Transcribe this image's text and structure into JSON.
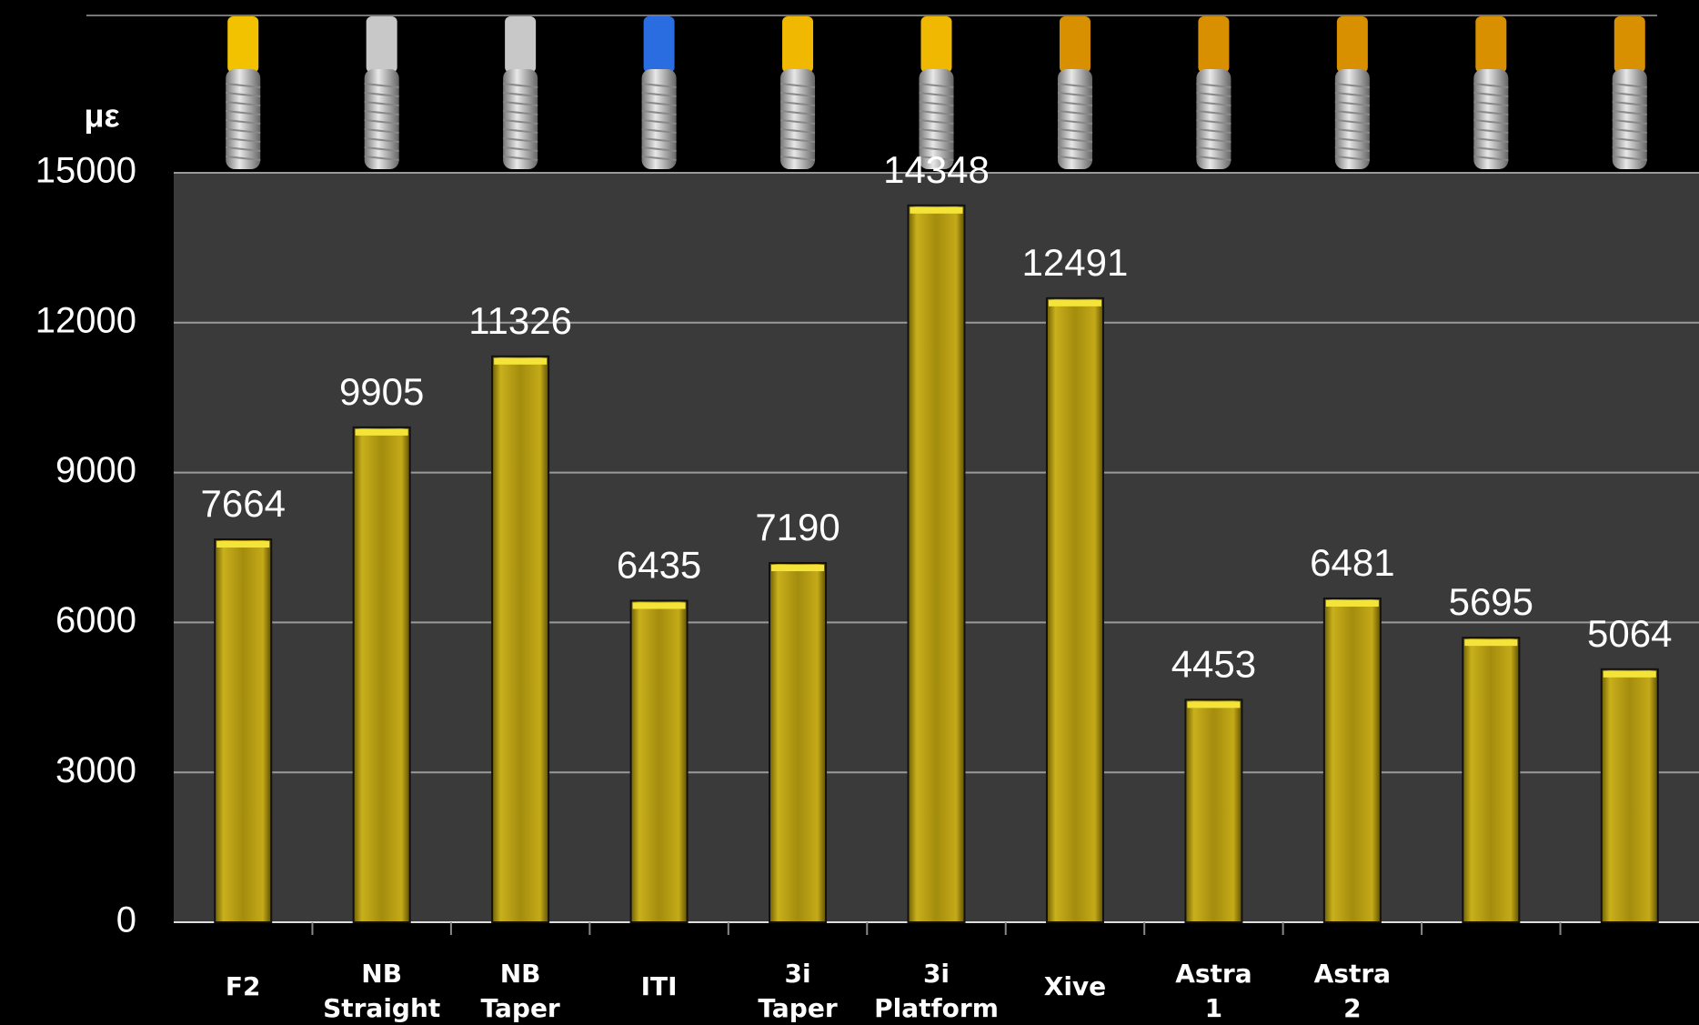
{
  "chart_data": {
    "type": "bar",
    "y_label": "με",
    "categories": [
      "F2",
      "NB Straight",
      "NB Taper",
      "ITI",
      "3i Taper",
      "3i Platform",
      "Xive",
      "Astra 1",
      "Astra 2",
      null,
      null
    ],
    "values": [
      7664,
      9905,
      11326,
      6435,
      7190,
      14348,
      12491,
      4453,
      6481,
      5695,
      5064
    ],
    "color": "#b59c12",
    "ylim": [
      0,
      15000
    ],
    "yticks": [
      0,
      3000,
      6000,
      9000,
      12000,
      15000
    ],
    "grid": true
  }
}
